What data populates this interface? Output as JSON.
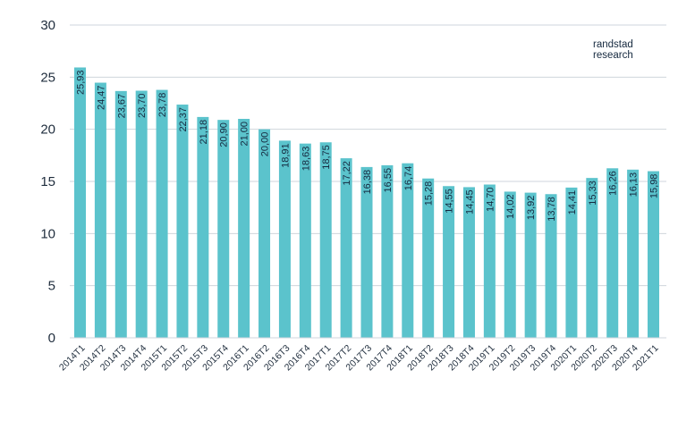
{
  "brand": {
    "line1": "randstad",
    "line2": "research"
  },
  "colors": {
    "bar": "#5bc3cc",
    "grid": "#cfd6dc",
    "axis": "#1f2d3d",
    "text": "#15293f"
  },
  "chart_data": {
    "type": "bar",
    "title": "",
    "xlabel": "",
    "ylabel": "",
    "ylim": [
      0,
      30
    ],
    "yticks": [
      0,
      5,
      10,
      15,
      20,
      25,
      30
    ],
    "grid": true,
    "categories": [
      "2014T1",
      "2014T2",
      "2014T3",
      "2014T4",
      "2015T1",
      "2015T2",
      "2015T3",
      "2015T4",
      "2016T1",
      "2016T2",
      "2016T3",
      "2016T4",
      "2017T1",
      "2017T2",
      "2017T3",
      "2017T4",
      "2018T1",
      "2018T2",
      "2018T3",
      "2018T4",
      "2019T1",
      "2019T2",
      "2019T3",
      "2019T4",
      "2020T1",
      "2020T2",
      "2020T3",
      "2020T4",
      "2021T1"
    ],
    "values": [
      25.93,
      24.47,
      23.67,
      23.7,
      23.78,
      22.37,
      21.18,
      20.9,
      21.0,
      20.0,
      18.91,
      18.63,
      18.75,
      17.22,
      16.38,
      16.55,
      16.74,
      15.28,
      14.55,
      14.45,
      14.7,
      14.02,
      13.92,
      13.78,
      14.41,
      15.33,
      16.26,
      16.13,
      15.98
    ],
    "value_labels": [
      "25,93",
      "24,47",
      "23,67",
      "23,70",
      "23,78",
      "22,37",
      "21,18",
      "20,90",
      "21,00",
      "20,00",
      "18,91",
      "18,63",
      "18,75",
      "17,22",
      "16,38",
      "16,55",
      "16,74",
      "15,28",
      "14,55",
      "14,45",
      "14,70",
      "14,02",
      "13,92",
      "13,78",
      "14,41",
      "15,33",
      "16,26",
      "16,13",
      "15,98"
    ]
  }
}
